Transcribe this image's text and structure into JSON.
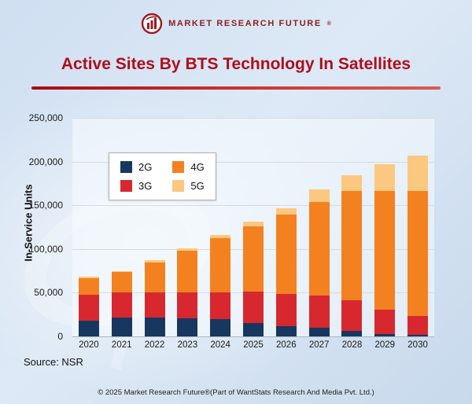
{
  "header": {
    "brand": "MARKET RESEARCH FUTURE",
    "reg_mark": "®"
  },
  "title": "Active Sites By BTS Technology In Satellites",
  "chart_data": {
    "type": "bar",
    "stacked": true,
    "title": "Active Sites By BTS Technology In Satellites",
    "xlabel": "",
    "ylabel": "In-Service Units",
    "ylim": [
      0,
      250000
    ],
    "grid": true,
    "legend_position": "top-left-inside",
    "categories": [
      "2020",
      "2021",
      "2022",
      "2023",
      "2024",
      "2025",
      "2026",
      "2027",
      "2028",
      "2029",
      "2030"
    ],
    "series": [
      {
        "name": "2G",
        "color": "#17375e",
        "values": [
          18000,
          22000,
          22000,
          21000,
          20000,
          15000,
          12000,
          10000,
          6000,
          3000,
          1500
        ]
      },
      {
        "name": "3G",
        "color": "#d7282f",
        "values": [
          30000,
          28000,
          28000,
          29000,
          30000,
          36000,
          37000,
          37000,
          35000,
          28000,
          22000
        ]
      },
      {
        "name": "4G",
        "color": "#f48120",
        "values": [
          19000,
          24000,
          35000,
          48000,
          62000,
          75000,
          90000,
          107000,
          125000,
          135000,
          143000
        ]
      },
      {
        "name": "5G",
        "color": "#fbc880",
        "values": [
          1000,
          1000,
          2000,
          3000,
          4000,
          5000,
          8000,
          14000,
          18000,
          31000,
          40000
        ]
      }
    ],
    "legend_order": [
      "2G",
      "4G",
      "3G",
      "5G"
    ],
    "yticks": [
      {
        "value": 0,
        "label": "0"
      },
      {
        "value": 50000,
        "label": "50,000"
      },
      {
        "value": 100000,
        "label": "100,000"
      },
      {
        "value": 150000,
        "label": "150,000"
      },
      {
        "value": 200000,
        "label": "200,000"
      },
      {
        "value": 250000,
        "label": "250,000"
      }
    ]
  },
  "source": "Source: NSR",
  "footer": "© 2025 Market Research Future®(Part of WantStats Research And Media Pvt. Ltd.)"
}
